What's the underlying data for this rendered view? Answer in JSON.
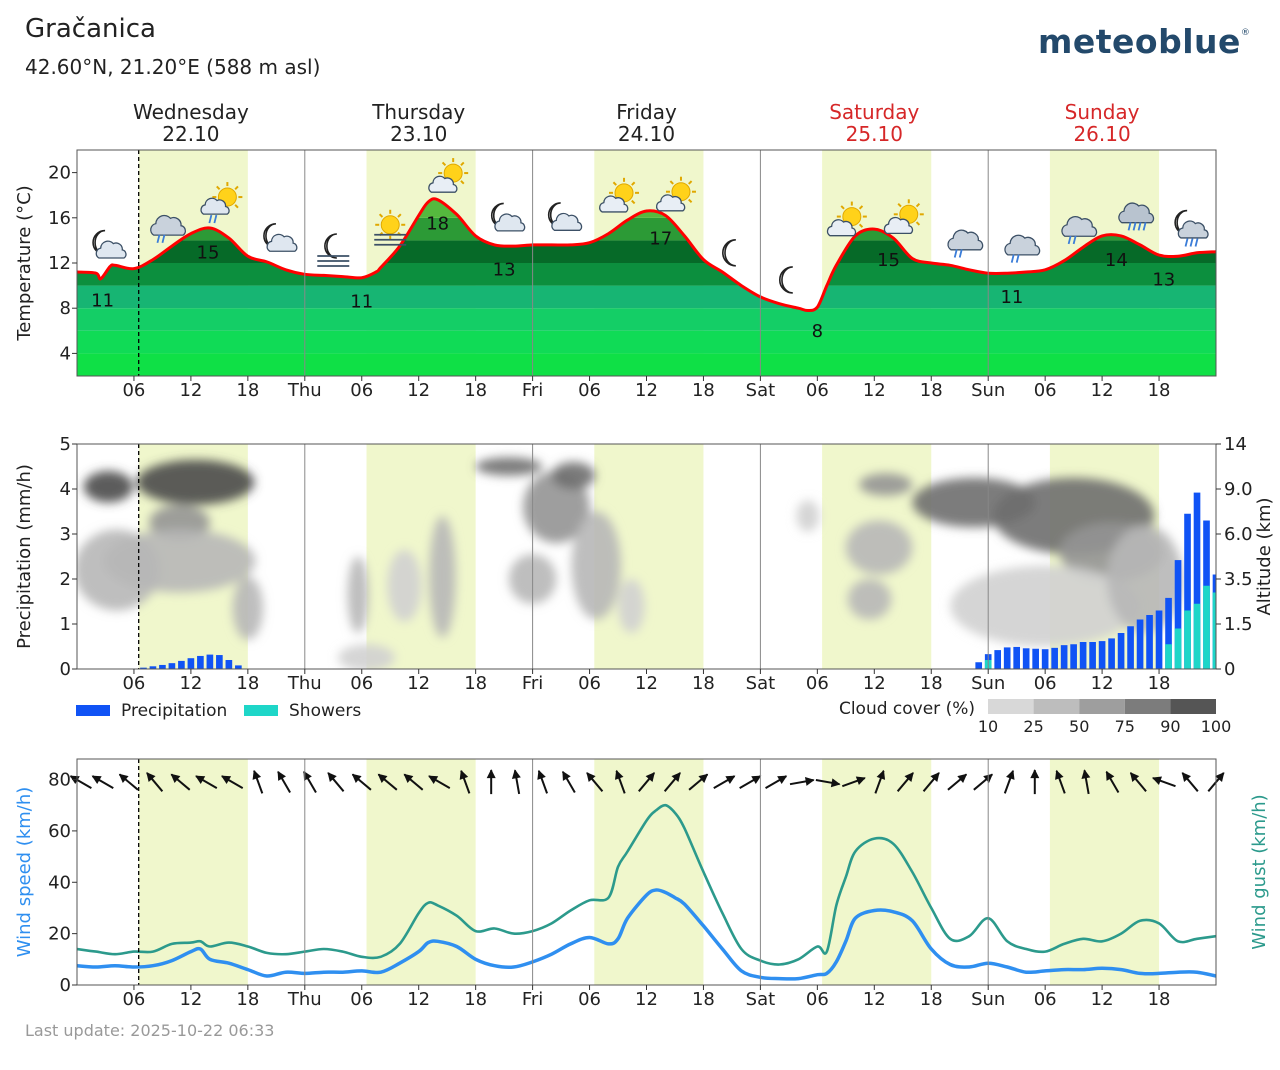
{
  "header": {
    "location_name": "Gračanica",
    "coordinates": "42.60°N, 21.20°E (588 m asl)",
    "brand": "meteoblue",
    "brand_mark": "®",
    "last_update": "Last update: 2025-10-22 06:33"
  },
  "colors": {
    "daylight": "#f0f7cc",
    "temp_line": "#ff0000",
    "precip": "#1053f5",
    "showers": "#1ed6c8",
    "wind_speed": "#2f8ff0",
    "wind_gust": "#2c9a8c",
    "weekend": "#d62728",
    "current_time_line": "#000000"
  },
  "chart_data": [
    {
      "type": "area",
      "id": "temperature",
      "ylabel": "Temperature (°C)",
      "ylim": [
        2,
        22
      ],
      "yticks": [
        4,
        8,
        12,
        16,
        20
      ],
      "x_unit": "hours from Wed 22.10 00:00",
      "xlim": [
        0,
        120
      ],
      "days": [
        {
          "name": "Wednesday",
          "date": "22.10",
          "weekend": false
        },
        {
          "name": "Thursday",
          "date": "23.10",
          "weekend": false
        },
        {
          "name": "Friday",
          "date": "24.10",
          "weekend": false
        },
        {
          "name": "Saturday",
          "date": "25.10",
          "weekend": true
        },
        {
          "name": "Sunday",
          "date": "26.10",
          "weekend": true
        }
      ],
      "xtick_labels": [
        "06",
        "12",
        "18",
        "Thu",
        "06",
        "12",
        "18",
        "Fri",
        "06",
        "12",
        "18",
        "Sat",
        "06",
        "12",
        "18",
        "Sun",
        "06",
        "12",
        "18"
      ],
      "xtick_hours": [
        6,
        12,
        18,
        24,
        30,
        36,
        42,
        48,
        54,
        60,
        66,
        72,
        78,
        84,
        90,
        96,
        102,
        108,
        114
      ],
      "daylight_periods": [
        [
          6.5,
          18
        ],
        [
          30.5,
          42
        ],
        [
          54.5,
          66
        ],
        [
          78.5,
          90
        ],
        [
          102.5,
          114
        ]
      ],
      "current_time": 6.5,
      "series": {
        "x": [
          0,
          2,
          2.5,
          3.5,
          4,
          6,
          8,
          10,
          12,
          14,
          16,
          18,
          20,
          22,
          24,
          26,
          28,
          30,
          31.5,
          32,
          34,
          36,
          37,
          38,
          40,
          42,
          44,
          46,
          48,
          50,
          52,
          54,
          56,
          58,
          60,
          62,
          64,
          66,
          68,
          70,
          72,
          74,
          76,
          77,
          78,
          79,
          80,
          82,
          84,
          86,
          88,
          90,
          92,
          94,
          96,
          98,
          100,
          102,
          104,
          106,
          108,
          110,
          112,
          114,
          116,
          118,
          120
        ],
        "values": [
          11.2,
          11.1,
          10.6,
          11.7,
          11.8,
          11.5,
          12.3,
          13.5,
          14.6,
          15.1,
          14.2,
          12.6,
          12.1,
          11.4,
          11,
          10.9,
          10.8,
          10.7,
          11.2,
          11.6,
          13.5,
          16.2,
          17.4,
          17.6,
          16.3,
          14.4,
          13.6,
          13.5,
          13.6,
          13.6,
          13.6,
          13.8,
          14.6,
          15.8,
          16.6,
          16.2,
          14.4,
          12.3,
          11.2,
          10,
          9,
          8.4,
          8,
          7.8,
          8.1,
          10,
          11.8,
          14.4,
          15,
          14.2,
          12.4,
          12,
          11.8,
          11.4,
          11.1,
          11.1,
          11.2,
          11.4,
          12.2,
          13.4,
          14.4,
          14.4,
          13.6,
          12.7,
          12.6,
          12.9,
          13
        ]
      },
      "temp_labels": [
        {
          "x": 2.7,
          "text": "11"
        },
        {
          "x": 13.8,
          "text": "15"
        },
        {
          "x": 30,
          "text": "11"
        },
        {
          "x": 38,
          "text": "18"
        },
        {
          "x": 45,
          "text": "13"
        },
        {
          "x": 61.5,
          "text": "17"
        },
        {
          "x": 78,
          "text": "8"
        },
        {
          "x": 85.5,
          "text": "15"
        },
        {
          "x": 98.5,
          "text": "11"
        },
        {
          "x": 109.5,
          "text": "14"
        },
        {
          "x": 114.5,
          "text": "13"
        }
      ],
      "weather_icons": [
        {
          "x": 3,
          "icon": "moon-cloud-icon"
        },
        {
          "x": 9,
          "icon": "cloud-rain-icon"
        },
        {
          "x": 15,
          "icon": "sun-cloud-rain-icon"
        },
        {
          "x": 21,
          "icon": "moon-cloud-icon"
        },
        {
          "x": 27,
          "icon": "moon-fog-icon"
        },
        {
          "x": 33,
          "icon": "sun-fog-icon"
        },
        {
          "x": 39,
          "icon": "sun-cloud-icon"
        },
        {
          "x": 45,
          "icon": "moon-cloud-icon"
        },
        {
          "x": 51,
          "icon": "moon-cloud-icon"
        },
        {
          "x": 57,
          "icon": "sun-cloud-icon"
        },
        {
          "x": 63,
          "icon": "sun-cloud-icon"
        },
        {
          "x": 69,
          "icon": "moon-icon"
        },
        {
          "x": 75,
          "icon": "moon-icon"
        },
        {
          "x": 81,
          "icon": "sun-cloud-icon"
        },
        {
          "x": 87,
          "icon": "sun-cloud-icon"
        },
        {
          "x": 93,
          "icon": "cloud-rain-icon"
        },
        {
          "x": 99,
          "icon": "cloud-rain-icon"
        },
        {
          "x": 105,
          "icon": "cloud-rain-icon"
        },
        {
          "x": 111,
          "icon": "cloud-heavy-rain-icon"
        },
        {
          "x": 117,
          "icon": "moon-cloud-rain-icon"
        }
      ]
    },
    {
      "type": "bar",
      "id": "precipitation",
      "ylabel": "Precipitation (mm/h)",
      "ylim": [
        0,
        5
      ],
      "yticks": [
        0,
        1,
        2,
        3,
        4,
        5
      ],
      "y2label": "Altitude (km)",
      "y2ticks": [
        "0",
        "1.5",
        "3.5",
        "6.0",
        "9.0",
        "14"
      ],
      "legend": [
        {
          "name": "Precipitation",
          "color_key": "precip"
        },
        {
          "name": "Showers",
          "color_key": "showers"
        }
      ],
      "cloud_cover_label": "Cloud cover (%)",
      "cloud_cover_scale": [
        "10",
        "25",
        "50",
        "75",
        "90",
        "100"
      ],
      "bars": [
        {
          "x": 7,
          "precip": 0.03,
          "showers": 0
        },
        {
          "x": 8,
          "precip": 0.06,
          "showers": 0
        },
        {
          "x": 9,
          "precip": 0.09,
          "showers": 0
        },
        {
          "x": 10,
          "precip": 0.13,
          "showers": 0
        },
        {
          "x": 11,
          "precip": 0.18,
          "showers": 0
        },
        {
          "x": 12,
          "precip": 0.24,
          "showers": 0
        },
        {
          "x": 13,
          "precip": 0.29,
          "showers": 0
        },
        {
          "x": 14,
          "precip": 0.32,
          "showers": 0
        },
        {
          "x": 15,
          "precip": 0.31,
          "showers": 0
        },
        {
          "x": 16,
          "precip": 0.2,
          "showers": 0
        },
        {
          "x": 17,
          "precip": 0.08,
          "showers": 0
        },
        {
          "x": 95,
          "precip": 0.15,
          "showers": 0
        },
        {
          "x": 96,
          "precip": 0.33,
          "showers": 0.2
        },
        {
          "x": 97,
          "precip": 0.42,
          "showers": 0
        },
        {
          "x": 98,
          "precip": 0.48,
          "showers": 0
        },
        {
          "x": 99,
          "precip": 0.49,
          "showers": 0
        },
        {
          "x": 100,
          "precip": 0.46,
          "showers": 0
        },
        {
          "x": 101,
          "precip": 0.45,
          "showers": 0
        },
        {
          "x": 102,
          "precip": 0.44,
          "showers": 0
        },
        {
          "x": 103,
          "precip": 0.47,
          "showers": 0
        },
        {
          "x": 104,
          "precip": 0.53,
          "showers": 0
        },
        {
          "x": 105,
          "precip": 0.55,
          "showers": 0
        },
        {
          "x": 106,
          "precip": 0.6,
          "showers": 0
        },
        {
          "x": 107,
          "precip": 0.6,
          "showers": 0
        },
        {
          "x": 108,
          "precip": 0.62,
          "showers": 0
        },
        {
          "x": 109,
          "precip": 0.68,
          "showers": 0
        },
        {
          "x": 110,
          "precip": 0.8,
          "showers": 0
        },
        {
          "x": 111,
          "precip": 0.95,
          "showers": 0
        },
        {
          "x": 112,
          "precip": 1.1,
          "showers": 0
        },
        {
          "x": 113,
          "precip": 1.2,
          "showers": 0
        },
        {
          "x": 114,
          "precip": 1.3,
          "showers": 0
        },
        {
          "x": 115,
          "precip": 1.58,
          "showers": 0.55
        },
        {
          "x": 116,
          "precip": 2.42,
          "showers": 0.9
        },
        {
          "x": 117,
          "precip": 3.45,
          "showers": 1.3
        },
        {
          "x": 118,
          "precip": 3.92,
          "showers": 1.45
        },
        {
          "x": 119,
          "precip": 3.3,
          "showers": 1.85
        },
        {
          "x": 120,
          "precip": 2.1,
          "showers": 1.7
        },
        {
          "x": 121,
          "precip": 1.1,
          "showers": 1.1
        }
      ],
      "clouds": [
        {
          "x": 3.3,
          "y": 4.05,
          "rx": 2.6,
          "ry": 0.35,
          "cover": 90
        },
        {
          "x": 12.5,
          "y": 4.15,
          "rx": 6.2,
          "ry": 0.5,
          "cover": 95
        },
        {
          "x": 10.8,
          "y": 3.25,
          "rx": 3.2,
          "ry": 0.4,
          "cover": 60
        },
        {
          "x": 10.8,
          "y": 2.4,
          "rx": 8,
          "ry": 0.7,
          "cover": 30
        },
        {
          "x": 4.2,
          "y": 2.2,
          "rx": 4.5,
          "ry": 0.9,
          "cover": 25
        },
        {
          "x": 18,
          "y": 1.35,
          "rx": 1.6,
          "ry": 0.7,
          "cover": 25
        },
        {
          "x": 30.5,
          "y": 0.25,
          "rx": 3,
          "ry": 0.3,
          "cover": 18
        },
        {
          "x": 29.6,
          "y": 1.65,
          "rx": 1.1,
          "ry": 0.85,
          "cover": 30
        },
        {
          "x": 34.5,
          "y": 1.85,
          "rx": 1.8,
          "ry": 0.8,
          "cover": 22
        },
        {
          "x": 38.5,
          "y": 2.05,
          "rx": 1.4,
          "ry": 1.35,
          "cover": 30
        },
        {
          "x": 45.5,
          "y": 4.5,
          "rx": 3.5,
          "ry": 0.2,
          "cover": 80
        },
        {
          "x": 50.5,
          "y": 3.6,
          "rx": 3.5,
          "ry": 0.8,
          "cover": 55
        },
        {
          "x": 52.3,
          "y": 4.3,
          "rx": 2.3,
          "ry": 0.3,
          "cover": 85
        },
        {
          "x": 48,
          "y": 2,
          "rx": 2.5,
          "ry": 0.55,
          "cover": 35
        },
        {
          "x": 54.7,
          "y": 2.3,
          "rx": 2.6,
          "ry": 1.2,
          "cover": 35
        },
        {
          "x": 58.4,
          "y": 1.4,
          "rx": 1.4,
          "ry": 0.6,
          "cover": 20
        },
        {
          "x": 77,
          "y": 3.4,
          "rx": 1.2,
          "ry": 0.35,
          "cover": 22
        },
        {
          "x": 85.2,
          "y": 4.1,
          "rx": 2.8,
          "ry": 0.25,
          "cover": 70
        },
        {
          "x": 84.5,
          "y": 2.7,
          "rx": 3.5,
          "ry": 0.6,
          "cover": 35
        },
        {
          "x": 83.5,
          "y": 1.55,
          "rx": 2.3,
          "ry": 0.45,
          "cover": 35
        },
        {
          "x": 94.5,
          "y": 3.7,
          "rx": 6.5,
          "ry": 0.55,
          "cover": 75
        },
        {
          "x": 105,
          "y": 3.4,
          "rx": 8.5,
          "ry": 0.85,
          "cover": 85
        },
        {
          "x": 109,
          "y": 2.6,
          "rx": 5.5,
          "ry": 0.65,
          "cover": 70
        },
        {
          "x": 102,
          "y": 1.4,
          "rx": 10,
          "ry": 0.9,
          "cover": 20
        },
        {
          "x": 112.5,
          "y": 2,
          "rx": 4,
          "ry": 1.2,
          "cover": 35
        }
      ]
    },
    {
      "type": "line",
      "id": "wind",
      "ylabel": "Wind speed (km/h)",
      "y2label": "Wind gust (km/h)",
      "ylim": [
        0,
        88
      ],
      "yticks": [
        0,
        20,
        40,
        60,
        80
      ],
      "series": [
        {
          "name": "Wind speed (km/h)",
          "color_key": "wind_speed",
          "x": [
            0,
            2,
            4,
            6,
            8,
            10,
            12,
            13,
            14,
            16,
            18,
            20,
            22,
            24,
            26,
            28,
            30,
            32,
            34,
            36,
            37,
            38,
            40,
            42,
            44,
            46,
            48,
            50,
            52,
            54,
            56,
            57,
            58,
            60,
            61,
            62,
            63,
            64,
            66,
            68,
            70,
            72,
            74,
            76,
            78,
            79,
            80,
            81,
            82,
            84,
            86,
            88,
            90,
            92,
            94,
            96,
            98,
            100,
            102,
            104,
            106,
            108,
            110,
            112,
            114,
            116,
            118,
            120
          ],
          "values": [
            7.5,
            7,
            7.5,
            7,
            7.5,
            9.5,
            13,
            14,
            10,
            8.5,
            6,
            3.5,
            5,
            4.5,
            5,
            5,
            5.5,
            5,
            8.5,
            13,
            16.5,
            17,
            15,
            10,
            7.5,
            7,
            9,
            12,
            16,
            18.5,
            16,
            18,
            26,
            35,
            37,
            36,
            34,
            31.5,
            23,
            14,
            5.5,
            3,
            2.5,
            2.5,
            4,
            4.5,
            9,
            17,
            26,
            29,
            28.5,
            25,
            14,
            8,
            7,
            8.5,
            7,
            5,
            5.5,
            6,
            6,
            6.5,
            6,
            4.5,
            4.5,
            5,
            5,
            3.5
          ]
        },
        {
          "name": "Wind gust (km/h)",
          "color_key": "wind_gust",
          "x": [
            0,
            2,
            4,
            6,
            8,
            10,
            12,
            13,
            14,
            16,
            18,
            20,
            22,
            24,
            26,
            28,
            30,
            32,
            34,
            36,
            37,
            38,
            40,
            42,
            44,
            46,
            48,
            50,
            52,
            54,
            56,
            57,
            58,
            60,
            61,
            62,
            63,
            64,
            66,
            68,
            70,
            72,
            74,
            76,
            78,
            79,
            80,
            81,
            82,
            84,
            86,
            88,
            90,
            92,
            94,
            96,
            98,
            100,
            102,
            104,
            106,
            108,
            110,
            112,
            114,
            116,
            118,
            120
          ],
          "values": [
            14,
            13,
            12,
            13,
            13,
            16,
            16.5,
            17,
            15,
            16.5,
            15,
            12.5,
            12,
            13,
            14,
            13,
            11,
            11,
            16,
            28,
            32,
            31,
            27,
            21,
            22,
            20,
            21,
            24,
            29,
            33,
            34,
            46,
            52,
            64,
            68,
            70,
            67,
            61,
            44,
            28,
            14,
            9.5,
            8,
            10,
            15,
            13,
            31,
            42,
            52,
            57,
            55,
            44,
            30,
            18,
            19,
            26,
            17,
            14,
            13,
            16,
            18,
            17,
            20,
            25,
            24,
            17,
            18,
            19
          ]
        }
      ],
      "wind_arrow_dirs": [
        300,
        300,
        310,
        320,
        310,
        300,
        300,
        340,
        330,
        330,
        320,
        310,
        310,
        310,
        300,
        340,
        0,
        350,
        340,
        330,
        320,
        340,
        40,
        40,
        50,
        60,
        60,
        60,
        80,
        100,
        70,
        20,
        40,
        40,
        50,
        50,
        20,
        0,
        340,
        350,
        330,
        320,
        290,
        320,
        40
      ]
    }
  ]
}
